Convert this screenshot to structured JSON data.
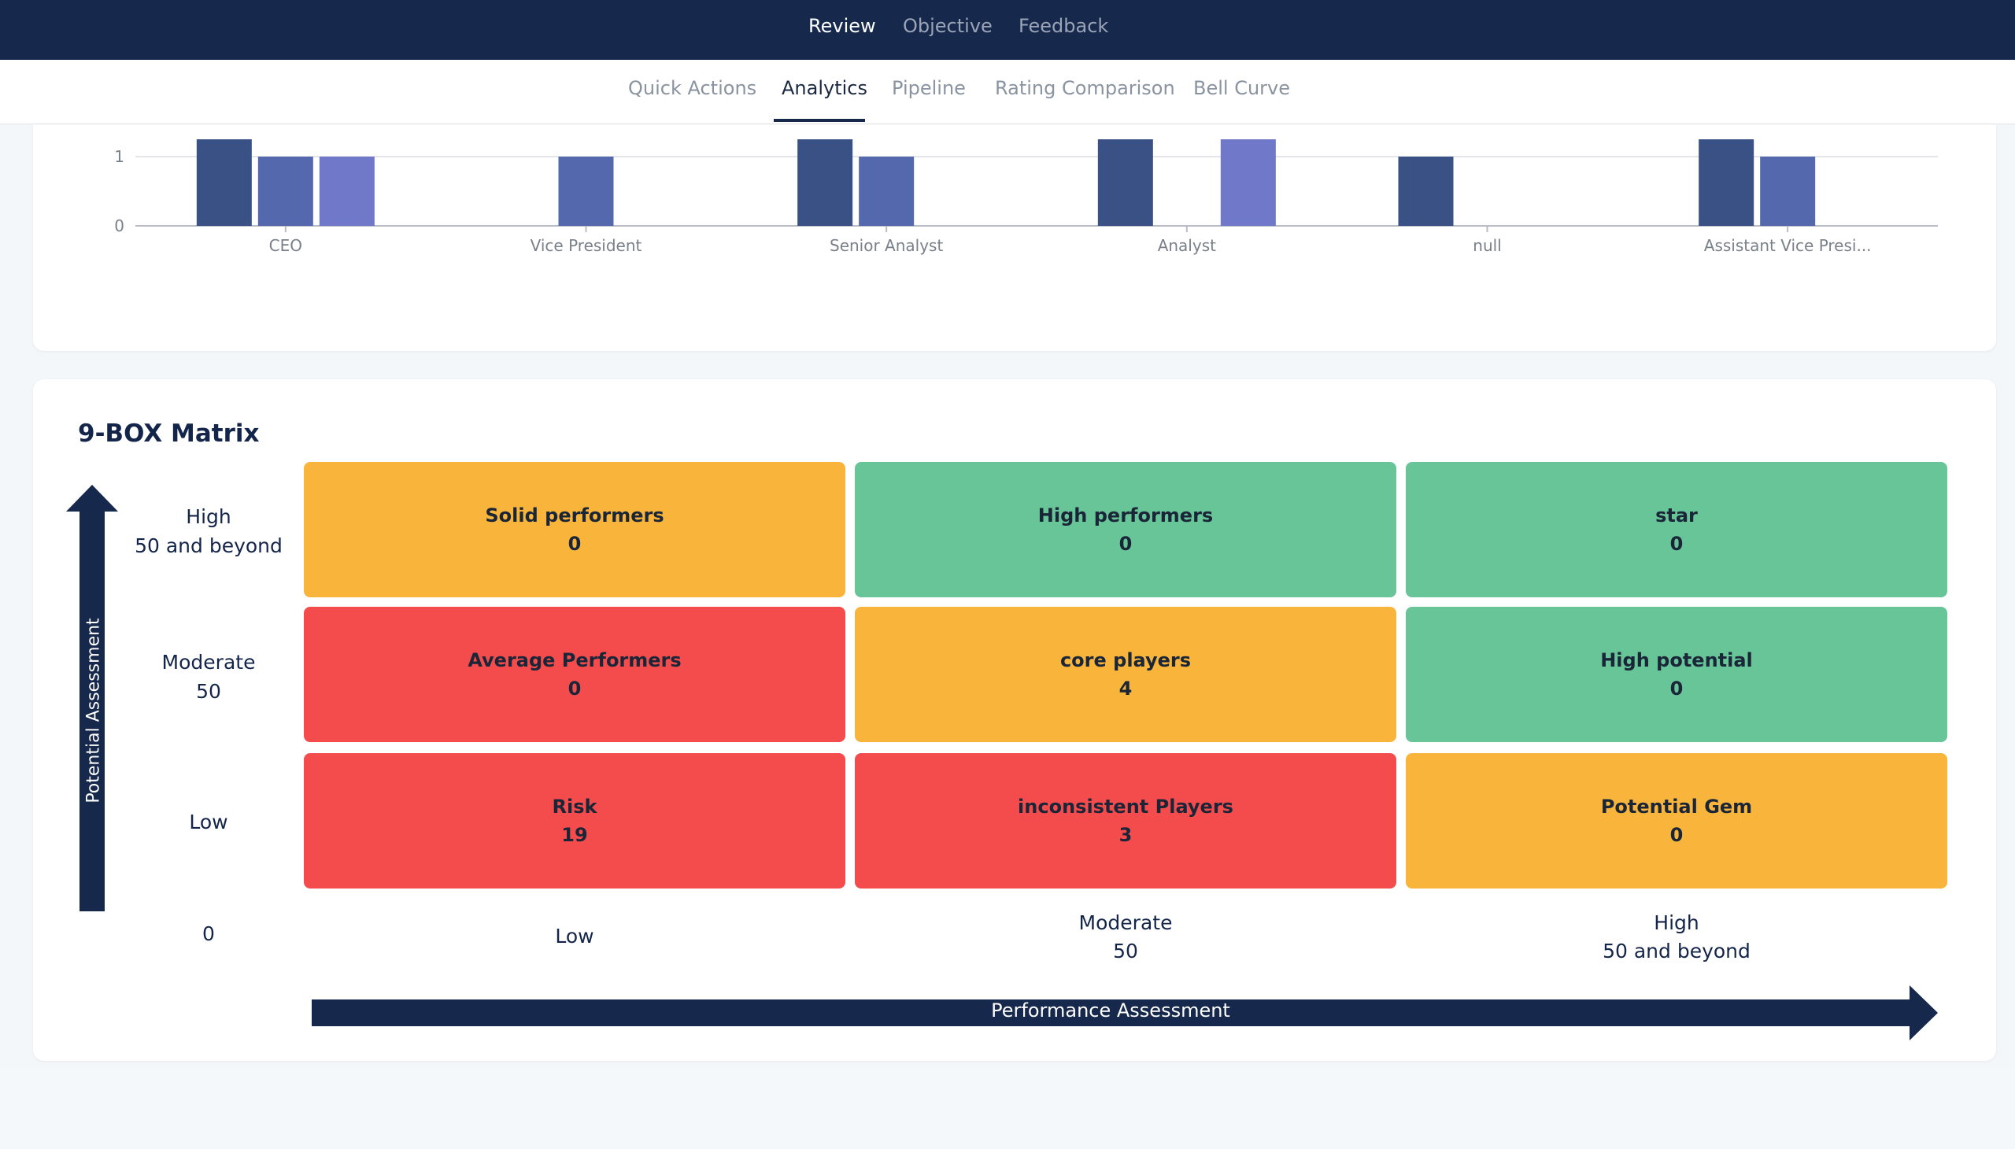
{
  "top_nav": {
    "items": [
      "Review",
      "Objective",
      "Feedback"
    ],
    "active": "Review"
  },
  "sub_nav": {
    "tabs": [
      "Quick Actions",
      "Analytics",
      "Pipeline",
      "Rating Comparison",
      "Bell Curve"
    ],
    "active": "Analytics"
  },
  "chart_data": {
    "type": "bar",
    "categories": [
      "CEO",
      "Vice President",
      "Senior Analyst",
      "Analyst",
      "null",
      "Assistant Vice Presi..."
    ],
    "y_ticks": [
      0,
      1
    ],
    "series_colors": [
      "#3a5186",
      "#5469ad",
      "#6f78c9"
    ],
    "bars": [
      {
        "category": "CEO",
        "series": 0,
        "value": 1.25
      },
      {
        "category": "CEO",
        "series": 1,
        "value": 1
      },
      {
        "category": "CEO",
        "series": 2,
        "value": 1
      },
      {
        "category": "Vice President",
        "series": 1,
        "value": 1
      },
      {
        "category": "Senior Analyst",
        "series": 0,
        "value": 1.25
      },
      {
        "category": "Senior Analyst",
        "series": 1,
        "value": 1
      },
      {
        "category": "Analyst",
        "series": 0,
        "value": 1.25
      },
      {
        "category": "Analyst",
        "series": 2,
        "value": 1.25
      },
      {
        "category": "null",
        "series": 0,
        "value": 1
      },
      {
        "category": "Assistant Vice Presi...",
        "series": 0,
        "value": 1.25
      },
      {
        "category": "Assistant Vice Presi...",
        "series": 1,
        "value": 1
      }
    ]
  },
  "matrix": {
    "title": "9-BOX Matrix",
    "y_axis_label": "Potential Assessment",
    "x_axis_label": "Performance Assessment",
    "rows": [
      {
        "line1": "High",
        "line2": "50 and beyond"
      },
      {
        "line1": "Moderate",
        "line2": "50"
      },
      {
        "line1": "Low",
        "line2": ""
      }
    ],
    "columns": [
      {
        "line1": "Low",
        "line2": ""
      },
      {
        "line1": "Moderate",
        "line2": "50"
      },
      {
        "line1": "High",
        "line2": "50 and beyond"
      }
    ],
    "origin_label": "0",
    "boxes": [
      {
        "label": "Solid performers",
        "count": "0",
        "color": "orange"
      },
      {
        "label": "High performers",
        "count": "0",
        "color": "green"
      },
      {
        "label": "star",
        "count": "0",
        "color": "green"
      },
      {
        "label": "Average Performers",
        "count": "0",
        "color": "red"
      },
      {
        "label": "core players",
        "count": "4",
        "color": "orange"
      },
      {
        "label": "High potential",
        "count": "0",
        "color": "green"
      },
      {
        "label": "Risk",
        "count": "19",
        "color": "red"
      },
      {
        "label": "inconsistent Players",
        "count": "3",
        "color": "red"
      },
      {
        "label": "Potential Gem",
        "count": "0",
        "color": "orange"
      }
    ]
  }
}
